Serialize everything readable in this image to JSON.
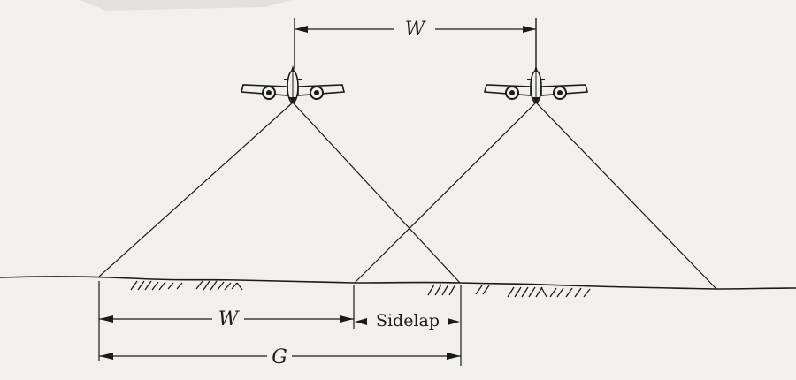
{
  "labels": {
    "top_width": "W",
    "ground_width": "W",
    "sidelap": "Sidelap",
    "ground_coverage": "G"
  },
  "colors": {
    "ink": "#1a1a1a",
    "paper": "#f1f0ee"
  },
  "icons": [
    "airplane-icon",
    "airplane-icon",
    "terrain-hatching"
  ]
}
